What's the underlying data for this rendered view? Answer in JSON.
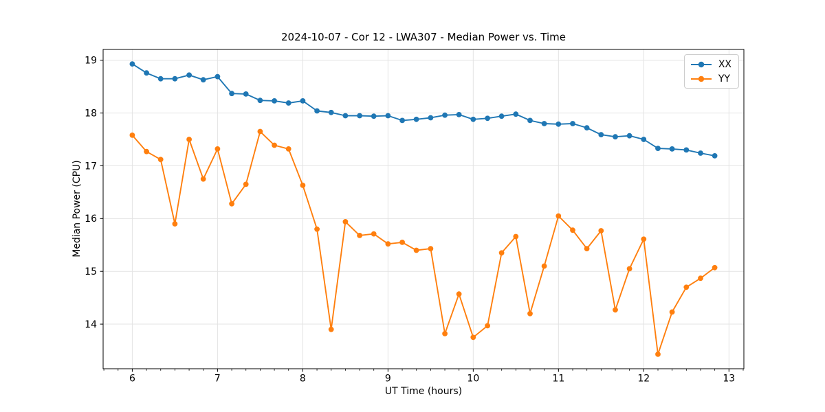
{
  "chart_data": {
    "type": "line",
    "title": "2024-10-07 - Cor 12 - LWA307 - Median Power vs. Time",
    "xlabel": "UT Time (hours)",
    "ylabel": "Median Power (CPU)",
    "xlim": [
      5.658,
      13.175
    ],
    "ylim": [
      13.155,
      19.205
    ],
    "x_ticks": [
      6,
      7,
      8,
      9,
      10,
      11,
      12,
      13
    ],
    "y_ticks": [
      14,
      15,
      16,
      17,
      18,
      19
    ],
    "x_minor_tick_step": 0.16667,
    "grid": "major",
    "grid_color": "#e3e3e3",
    "legend_position": "upper right",
    "x": [
      6.0,
      6.167,
      6.333,
      6.5,
      6.667,
      6.833,
      7.0,
      7.167,
      7.333,
      7.5,
      7.667,
      7.833,
      8.0,
      8.167,
      8.333,
      8.5,
      8.667,
      8.833,
      9.0,
      9.167,
      9.333,
      9.5,
      9.667,
      9.833,
      10.0,
      10.167,
      10.333,
      10.5,
      10.667,
      10.833,
      11.0,
      11.167,
      11.333,
      11.5,
      11.667,
      11.833,
      12.0,
      12.167,
      12.333,
      12.5,
      12.667,
      12.833
    ],
    "series": [
      {
        "name": "XX",
        "color": "#1f77b4",
        "marker": "circle",
        "values": [
          18.93,
          18.76,
          18.65,
          18.65,
          18.72,
          18.63,
          18.69,
          18.37,
          18.36,
          18.24,
          18.23,
          18.19,
          18.23,
          18.04,
          18.01,
          17.95,
          17.95,
          17.94,
          17.95,
          17.86,
          17.88,
          17.91,
          17.96,
          17.97,
          17.88,
          17.9,
          17.94,
          17.98,
          17.86,
          17.8,
          17.79,
          17.8,
          17.72,
          17.59,
          17.55,
          17.57,
          17.5,
          17.33,
          17.32,
          17.3,
          17.24,
          17.19
        ]
      },
      {
        "name": "YY",
        "color": "#ff7f0e",
        "marker": "circle",
        "values": [
          17.58,
          17.27,
          17.12,
          15.9,
          17.5,
          16.75,
          17.32,
          16.28,
          16.65,
          17.65,
          17.39,
          17.32,
          16.63,
          15.8,
          13.9,
          15.94,
          15.68,
          15.71,
          15.52,
          15.55,
          15.4,
          15.43,
          13.82,
          14.57,
          13.75,
          13.97,
          15.35,
          15.66,
          14.2,
          15.1,
          16.05,
          15.78,
          15.43,
          15.77,
          14.27,
          15.05,
          15.61,
          13.43,
          14.23,
          14.7,
          14.87,
          15.07
        ]
      }
    ]
  }
}
